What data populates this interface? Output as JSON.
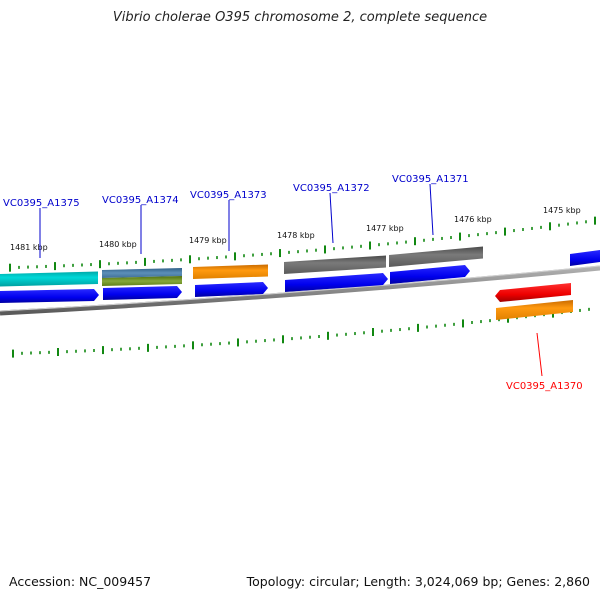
{
  "title": "Vibrio cholerae O395 chromosome 2, complete sequence",
  "accession_line": "Accession: NC_009457",
  "summary_line": "Topology: circular; Length: 3,024,069 bp; Genes: 2,860",
  "ticks": [
    {
      "label": "1481 kbp"
    },
    {
      "label": "1480 kbp"
    },
    {
      "label": "1479 kbp"
    },
    {
      "label": "1478 kbp"
    },
    {
      "label": "1477 kbp"
    },
    {
      "label": "1476 kbp"
    },
    {
      "label": "1475 kbp"
    }
  ],
  "genes": [
    {
      "label": "VC0395_A1375",
      "color": "#0000cc"
    },
    {
      "label": "VC0395_A1374",
      "color": "#0000cc"
    },
    {
      "label": "VC0395_A1373",
      "color": "#0000cc"
    },
    {
      "label": "VC0395_A1372",
      "color": "#0000cc"
    },
    {
      "label": "VC0395_A1371",
      "color": "#0000cc"
    },
    {
      "label": "VC0395_A1370",
      "color": "#ff0000"
    }
  ],
  "colors": {
    "cds_forward": "#0000ff",
    "cds_reverse": "#ff0000",
    "tick": "#118811",
    "backbone": "#8a8a8a",
    "feature_cyan": "#00c8c8",
    "feature_orange": "#ff9900",
    "feature_gray": "#6e6e6e",
    "feature_steelblue": "#4a7fa8",
    "feature_olive": "#6f8f22"
  }
}
